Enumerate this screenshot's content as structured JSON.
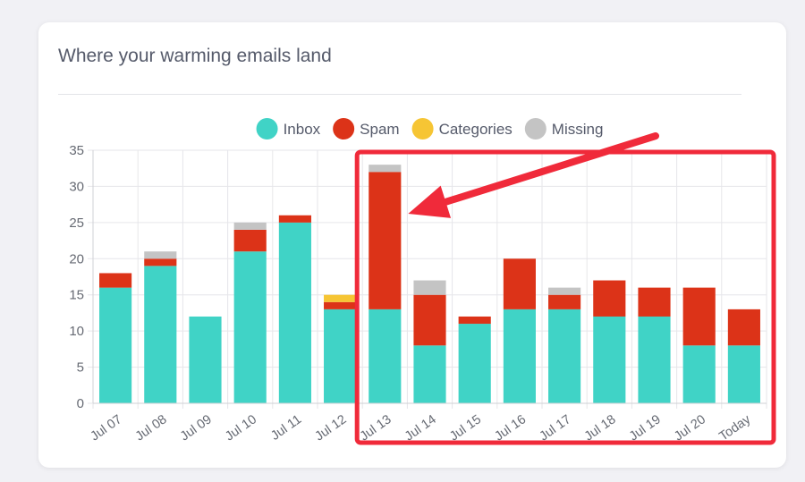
{
  "card": {
    "title": "Where your warming emails land"
  },
  "colors": {
    "Inbox": "#40d3c6",
    "Spam": "#dc3318",
    "Categories": "#f6c534",
    "Missing": "#c4c4c4",
    "highlight": "#f02a3a"
  },
  "chart_data": {
    "type": "bar",
    "stacked": true,
    "title": "Where your warming emails land",
    "categories": [
      "Jul 07",
      "Jul 08",
      "Jul 09",
      "Jul 10",
      "Jul 11",
      "Jul 12",
      "Jul 13",
      "Jul 14",
      "Jul 15",
      "Jul 16",
      "Jul 17",
      "Jul 18",
      "Jul 19",
      "Jul 20",
      "Today"
    ],
    "series": [
      {
        "name": "Inbox",
        "values": [
          16,
          19,
          12,
          21,
          25,
          13,
          13,
          8,
          11,
          13,
          13,
          12,
          12,
          8,
          8
        ]
      },
      {
        "name": "Spam",
        "values": [
          2,
          1,
          0,
          3,
          1,
          1,
          19,
          7,
          1,
          7,
          2,
          5,
          4,
          8,
          5
        ]
      },
      {
        "name": "Categories",
        "values": [
          0,
          0,
          0,
          0,
          0,
          1,
          0,
          0,
          0,
          0,
          0,
          0,
          0,
          0,
          0
        ]
      },
      {
        "name": "Missing",
        "values": [
          0,
          1,
          0,
          1,
          0,
          0,
          1,
          2,
          0,
          0,
          1,
          0,
          0,
          0,
          0
        ]
      }
    ],
    "ylim": [
      0,
      35
    ],
    "yticks": [
      0,
      5,
      10,
      15,
      20,
      25,
      30,
      35
    ],
    "xlabel": "",
    "ylabel": "",
    "legend_position": "top-center",
    "grid": true,
    "highlight": {
      "from": "Jul 13",
      "to": "Today",
      "arrow_target": "Jul 13"
    }
  }
}
